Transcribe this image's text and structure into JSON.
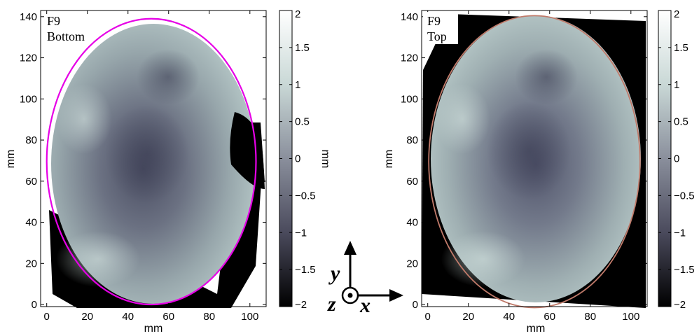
{
  "chart_data": [
    {
      "type": "heatmap",
      "panel_label_line1": "F9",
      "panel_label_line2": "Bottom",
      "xlabel": "mm",
      "ylabel": "mm",
      "xlim": [
        -3,
        108
      ],
      "ylim": [
        -1,
        143
      ],
      "xticks": [
        0,
        20,
        40,
        60,
        80,
        100
      ],
      "yticks": [
        0,
        20,
        40,
        60,
        80,
        100,
        120,
        140
      ],
      "ellipse": {
        "cx": 51.5,
        "cy": 69.5,
        "rx": 51.5,
        "ry": 69.5,
        "color": "#e600e6"
      },
      "colorbar": {
        "label": "mm",
        "range": [
          -2,
          2
        ],
        "ticks": [
          2,
          1.5,
          1,
          0.5,
          0,
          -0.5,
          -1,
          -1.5,
          -2
        ],
        "tick_labels": [
          "2",
          "1.5",
          "1",
          "0.5",
          "0",
          "−0.5",
          "−1",
          "−1.5",
          "−2"
        ]
      }
    },
    {
      "type": "heatmap",
      "panel_label_line1": "F9",
      "panel_label_line2": "Top",
      "xlabel": "mm",
      "ylabel": "mm",
      "xlim": [
        -3,
        108
      ],
      "ylim": [
        -1,
        143
      ],
      "xticks": [
        0,
        20,
        40,
        60,
        80,
        100
      ],
      "yticks": [
        0,
        20,
        40,
        60,
        80,
        100,
        120,
        140
      ],
      "ellipse": {
        "cx": 52.5,
        "cy": 69.5,
        "rx": 52,
        "ry": 71,
        "color": "#c07a6a"
      },
      "colorbar": {
        "label": "mm",
        "range": [
          -2,
          2
        ],
        "ticks": [
          2,
          1.5,
          1,
          0.5,
          0,
          -0.5,
          -1,
          -1.5,
          -2
        ],
        "tick_labels": [
          "2",
          "1.5",
          "1",
          "0.5",
          "0",
          "−0.5",
          "−1",
          "−1.5",
          "−2"
        ]
      }
    }
  ],
  "coordinate_axes": {
    "y": "y",
    "z": "z",
    "x": "x"
  }
}
